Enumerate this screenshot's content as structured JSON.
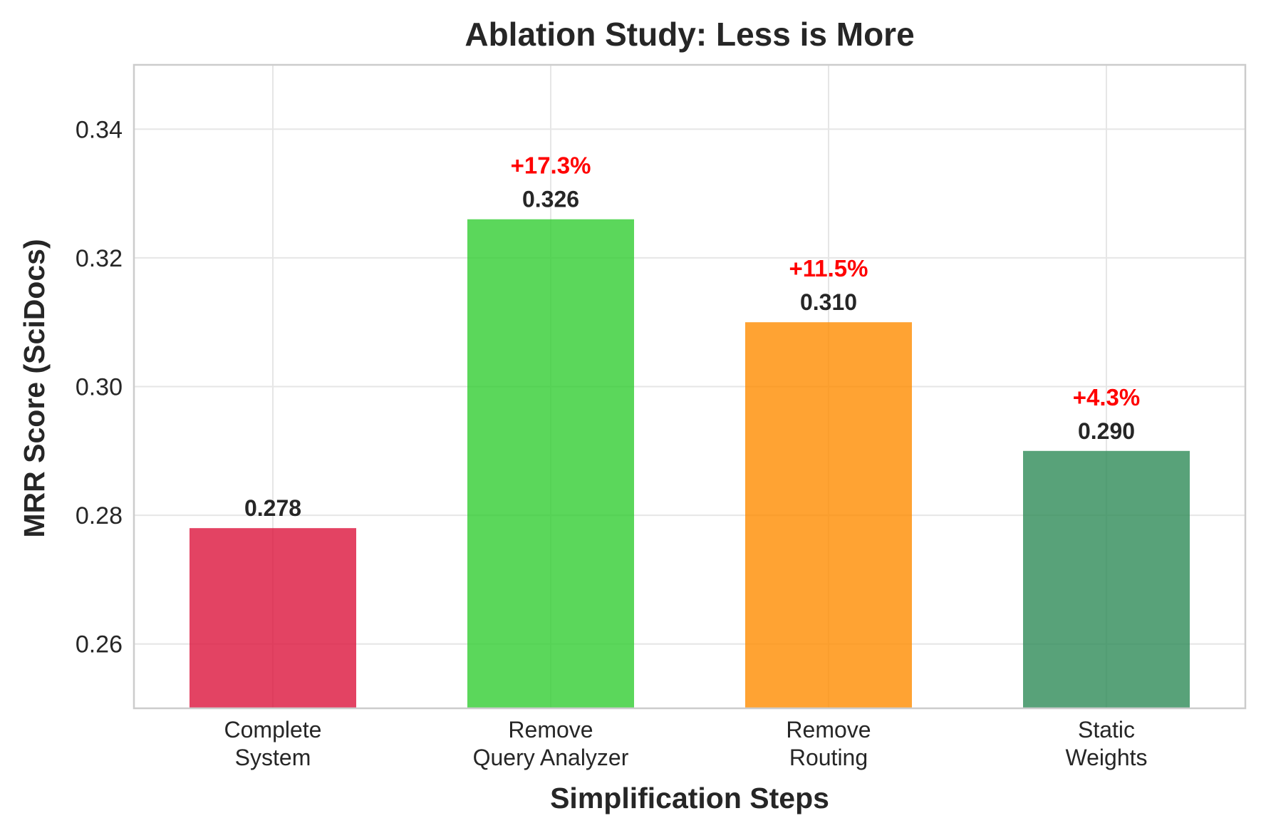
{
  "chart_data": {
    "type": "bar",
    "title": "Ablation Study: Less is More",
    "xlabel": "Simplification Steps",
    "ylabel": "MRR Score (SciDocs)",
    "categories": [
      [
        "Complete",
        "System"
      ],
      [
        "Remove",
        "Query Analyzer"
      ],
      [
        "Remove",
        "Routing"
      ],
      [
        "Static",
        "Weights"
      ]
    ],
    "values": [
      0.278,
      0.326,
      0.31,
      0.29
    ],
    "value_labels": [
      "0.278",
      "0.326",
      "0.310",
      "0.290"
    ],
    "improvement_labels": [
      "",
      "+17.3%",
      "+11.5%",
      "+4.3%"
    ],
    "colors": [
      "#dc143c",
      "#32cd32",
      "#ff8c00",
      "#2e8b57"
    ],
    "bar_opacity": 0.8,
    "ylim": [
      0.25,
      0.35
    ],
    "yticks": [
      "0.26",
      "0.28",
      "0.30",
      "0.32",
      "0.34"
    ],
    "ytick_values": [
      0.26,
      0.28,
      0.3,
      0.32,
      0.34
    ],
    "grid": true,
    "legend": "none"
  }
}
